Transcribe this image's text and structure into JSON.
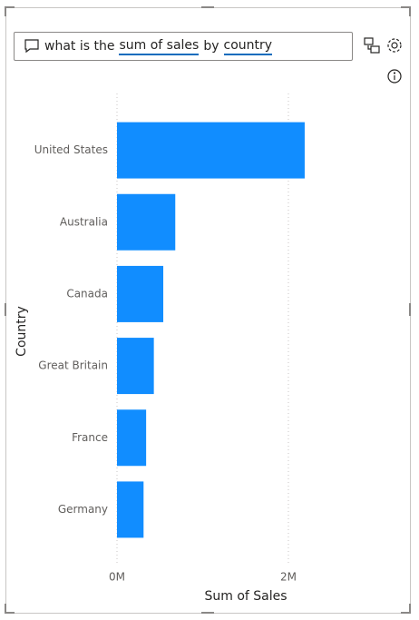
{
  "query": {
    "parts": [
      {
        "text": "what is the",
        "underline": false
      },
      {
        "text": "sum of sales",
        "underline": true
      },
      {
        "text": "by",
        "underline": false
      },
      {
        "text": "country",
        "underline": true
      }
    ]
  },
  "chart_data": {
    "type": "hbar",
    "xlabel": "Sum of Sales",
    "ylabel": "Country",
    "categories": [
      "United States",
      "Australia",
      "Canada",
      "Great Britain",
      "France",
      "Germany"
    ],
    "values": [
      2190000,
      680000,
      540000,
      430000,
      340000,
      310000
    ],
    "color": "#118dff",
    "xlim": [
      0,
      2500000
    ],
    "xticks": [
      {
        "value": 0,
        "label": "0M"
      },
      {
        "value": 2000000,
        "label": "2M"
      }
    ],
    "grid": true
  }
}
